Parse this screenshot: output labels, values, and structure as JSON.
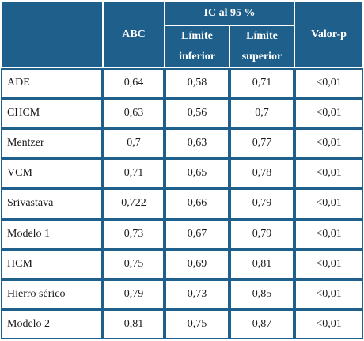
{
  "header": {
    "abc": "ABC",
    "ci_group": "IC al 95 %",
    "lower_line1": "Límite",
    "lower_line2": "inferior",
    "upper_line1": "Límite",
    "upper_line2": "superior",
    "pvalue": "Valor-p"
  },
  "rows": [
    {
      "label": "ADE",
      "abc": "0,64",
      "lower": "0,58",
      "upper": "0,71",
      "p": "<0,01"
    },
    {
      "label": "CHCM",
      "abc": "0,63",
      "lower": "0,56",
      "upper": "0,7",
      "p": "<0,01"
    },
    {
      "label": "Mentzer",
      "abc": "0,7",
      "lower": "0,63",
      "upper": "0,77",
      "p": "<0,01"
    },
    {
      "label": "VCM",
      "abc": "0,71",
      "lower": "0,65",
      "upper": "0,78",
      "p": "<0,01"
    },
    {
      "label": "Srivastava",
      "abc": "0,722",
      "lower": "0,66",
      "upper": "0,79",
      "p": "<0,01"
    },
    {
      "label": "Modelo 1",
      "abc": "0,73",
      "lower": "0,67",
      "upper": "0,79",
      "p": "<0,01"
    },
    {
      "label": "HCM",
      "abc": "0,75",
      "lower": "0,69",
      "upper": "0,81",
      "p": "<0,01"
    },
    {
      "label": "Hierro sérico",
      "abc": "0,79",
      "lower": "0,73",
      "upper": "0,85",
      "p": "<0,01"
    },
    {
      "label": "Modelo 2",
      "abc": "0,81",
      "lower": "0,75",
      "upper": "0,87",
      "p": "<0,01"
    }
  ],
  "colors": {
    "header_bg": "#1f5f8b",
    "header_text": "#ffffff",
    "border": "#1f5f8b"
  }
}
